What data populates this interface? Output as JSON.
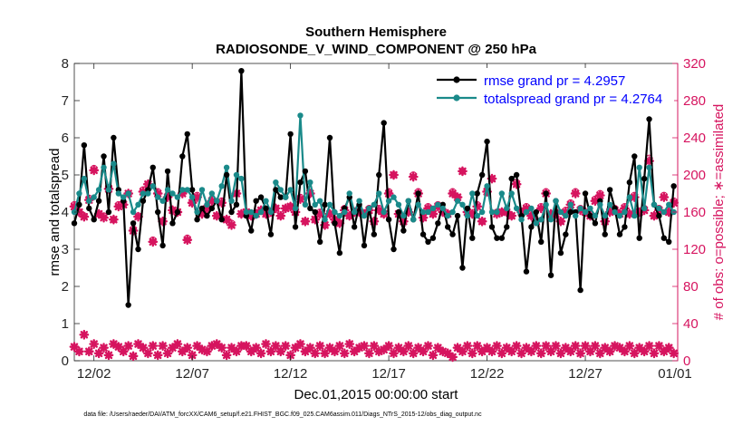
{
  "chart_data": {
    "type": "line",
    "title": "Southern Hemisphere",
    "subtitle": "RADIOSONDE_V_WIND_COMPONENT @ 250 hPa",
    "xlabel": "Dec.01,2015 00:00:00 start",
    "ylabel_left": "rmse and totalspread",
    "ylabel_right": "# of obs: o=possible; ∗=assimilated",
    "xlim": [
      0.5,
      31.2
    ],
    "ylim_left": [
      0,
      8
    ],
    "ylim_right": [
      0,
      320
    ],
    "x_ticks": [
      {
        "value": 1.5,
        "label": "12/02"
      },
      {
        "value": 6.5,
        "label": "12/07"
      },
      {
        "value": 11.5,
        "label": "12/12"
      },
      {
        "value": 16.5,
        "label": "12/17"
      },
      {
        "value": 21.5,
        "label": "12/22"
      },
      {
        "value": 26.5,
        "label": "12/27"
      },
      {
        "value": 31.5,
        "label": "01/01"
      }
    ],
    "y_ticks_left": [
      0,
      1,
      2,
      3,
      4,
      5,
      6,
      7,
      8
    ],
    "y_ticks_right": [
      0,
      40,
      80,
      120,
      160,
      200,
      240,
      280,
      320
    ],
    "colors": {
      "rmse": "#000000",
      "spread": "#1a8a8a",
      "obs": "#d6145f",
      "axis_right": "#d6145f",
      "legend_text": "#0000ff"
    },
    "legend": [
      {
        "key": "rmse",
        "label": "rmse grand pr = 4.2957"
      },
      {
        "key": "spread",
        "label": "totalspread grand pr = 4.2764"
      }
    ],
    "x_start": 0.5,
    "x_step": 0.25,
    "series": [
      {
        "name": "rmse",
        "axis": "left",
        "values": [
          3.7,
          4.2,
          5.8,
          4.1,
          3.8,
          4.3,
          5.5,
          4.0,
          6.0,
          4.6,
          4.3,
          1.5,
          3.7,
          3.0,
          4.3,
          4.6,
          5.2,
          4.0,
          3.1,
          5.1,
          3.7,
          4.0,
          5.5,
          6.1,
          4.6,
          3.8,
          4.1,
          3.9,
          4.1,
          4.3,
          3.8,
          5.0,
          4.0,
          4.2,
          7.8,
          3.9,
          3.5,
          4.3,
          4.4,
          4.1,
          3.4,
          4.6,
          4.4,
          4.4,
          6.1,
          3.6,
          4.8,
          5.1,
          4.1,
          4.0,
          3.2,
          4.2,
          6.0,
          3.7,
          2.9,
          4.1,
          4.4,
          3.6,
          4.2,
          3.1,
          4.1,
          3.4,
          5.0,
          6.4,
          3.8,
          3.0,
          4.0,
          3.5,
          4.3,
          3.8,
          4.5,
          3.4,
          3.2,
          3.3,
          3.7,
          4.2,
          3.6,
          3.4,
          3.9,
          2.5,
          4.1,
          3.3,
          4.5,
          5.0,
          5.9,
          3.6,
          3.3,
          3.3,
          3.6,
          4.9,
          5.0,
          3.9,
          2.4,
          3.6,
          4.0,
          3.2,
          4.5,
          2.3,
          4.3,
          2.9,
          3.4,
          4.0,
          4.0,
          1.9,
          4.5,
          3.9,
          3.7,
          4.3,
          3.4,
          4.6,
          4.1,
          3.4,
          3.6,
          4.8,
          5.5,
          3.3,
          4.9,
          6.5,
          4.2,
          3.9,
          3.3,
          3.2,
          4.7,
          4.3,
          4.0,
          3.9,
          4.5,
          3.9,
          4.4,
          3.2,
          4.6,
          2.5
        ]
      },
      {
        "name": "totalspread",
        "axis": "left",
        "values": [
          4.0,
          4.5,
          4.9,
          4.3,
          4.4,
          4.6,
          5.2,
          4.6,
          5.3,
          4.5,
          4.4,
          4.5,
          4.0,
          4.2,
          4.5,
          4.5,
          4.7,
          4.4,
          4.3,
          4.6,
          4.5,
          4.4,
          4.6,
          4.6,
          4.4,
          4.0,
          4.6,
          4.2,
          4.5,
          4.3,
          4.7,
          5.2,
          4.3,
          5.0,
          4.9,
          4.0,
          4.0,
          3.9,
          4.0,
          4.3,
          4.0,
          4.8,
          4.6,
          4.4,
          4.6,
          4.1,
          6.6,
          4.2,
          4.8,
          4.2,
          4.3,
          3.8,
          4.2,
          4.0,
          3.9,
          4.0,
          4.5,
          4.0,
          4.3,
          3.9,
          4.1,
          4.2,
          4.5,
          4.0,
          4.3,
          4.4,
          4.2,
          3.9,
          4.3,
          3.8,
          4.2,
          4.0,
          4.0,
          4.1,
          4.2,
          4.1,
          3.9,
          4.0,
          4.3,
          4.2,
          3.9,
          4.5,
          3.9,
          4.0,
          4.7,
          4.0,
          4.0,
          4.5,
          4.1,
          4.5,
          4.1,
          3.8,
          4.0,
          4.1,
          3.7,
          3.8,
          4.2,
          3.8,
          4.3,
          4.0,
          3.9,
          4.2,
          3.9,
          4.1,
          4.0,
          4.1,
          3.9,
          4.2,
          3.9,
          4.2,
          4.0,
          3.9,
          4.0,
          4.4,
          3.9,
          5.2,
          4.1,
          5.2,
          4.2,
          4.1,
          4.0,
          4.2,
          4.0,
          4.1,
          4.2,
          4.0,
          4.1,
          4.2,
          3.9,
          4.3,
          4.0,
          4.0
        ]
      },
      {
        "name": "obs_assimilated",
        "axis": "right",
        "marker": "*",
        "values": [
          166,
          160,
          155,
          173,
          205,
          158,
          154,
          185,
          152,
          166,
          168,
          180,
          140,
          155,
          182,
          190,
          128,
          180,
          150,
          176,
          162,
          160,
          180,
          130,
          170,
          176,
          158,
          164,
          172,
          156,
          170,
          152,
          146,
          180,
          158,
          160,
          156,
          158,
          162,
          158,
          160,
          164,
          156,
          164,
          166,
          160,
          174,
          150,
          180,
          152,
          158,
          146,
          158,
          152,
          148,
          162,
          156,
          160,
          160,
          158,
          162,
          150,
          162,
          158,
          180,
          200,
          158,
          150,
          160,
          198,
          180,
          154,
          164,
          158,
          166,
          160,
          158,
          180,
          176,
          204,
          160,
          158,
          166,
          150,
          182,
          196,
          158,
          160,
          160,
          156,
          190,
          160,
          164,
          156,
          150,
          164,
          180,
          158,
          158,
          150,
          160,
          168,
          180,
          162,
          160,
          156,
          172,
          178,
          150,
          160,
          162,
          158,
          164,
          158,
          176,
          160,
          162,
          215,
          156,
          162,
          176,
          160,
          170,
          164,
          206,
          156,
          190,
          160,
          166,
          160,
          162,
          156
        ]
      },
      {
        "name": "obs_possible",
        "axis": "right",
        "marker": "o",
        "values": [
          168,
          160,
          156,
          175,
          207,
          158,
          156,
          186,
          152,
          168,
          168,
          180,
          142,
          156,
          184,
          190,
          130,
          182,
          150,
          178,
          162,
          160,
          182,
          132,
          170,
          178,
          160,
          164,
          174,
          156,
          172,
          152,
          148,
          180,
          158,
          160,
          156,
          158,
          162,
          158,
          160,
          164,
          156,
          164,
          166,
          160,
          176,
          150,
          180,
          152,
          160,
          146,
          158,
          152,
          148,
          164,
          156,
          160,
          160,
          158,
          164,
          150,
          164,
          158,
          182,
          200,
          158,
          150,
          160,
          200,
          182,
          154,
          166,
          158,
          168,
          160,
          158,
          182,
          176,
          204,
          162,
          158,
          168,
          150,
          184,
          196,
          160,
          160,
          162,
          156,
          192,
          160,
          166,
          156,
          150,
          166,
          182,
          158,
          160,
          150,
          162,
          170,
          182,
          164,
          160,
          156,
          174,
          180,
          150,
          162,
          164,
          158,
          166,
          158,
          178,
          160,
          164,
          218,
          156,
          164,
          178,
          160,
          172,
          166,
          208,
          156,
          192,
          160,
          168,
          160,
          164,
          156
        ]
      },
      {
        "name": "obs_low",
        "axis": "right",
        "marker": "*",
        "values": [
          15,
          10,
          28,
          10,
          18,
          8,
          14,
          6,
          18,
          15,
          10,
          16,
          5,
          18,
          14,
          8,
          16,
          6,
          16,
          8,
          14,
          18,
          10,
          14,
          6,
          16,
          12,
          10,
          16,
          18,
          14,
          6,
          14,
          10,
          16,
          16,
          10,
          14,
          8,
          18,
          10,
          16,
          10,
          16,
          6,
          14,
          18,
          10,
          14,
          8,
          16,
          8,
          14,
          10,
          16,
          8,
          18,
          10,
          14,
          16,
          8,
          16,
          10,
          12,
          16,
          8,
          14,
          10,
          16,
          8,
          14,
          10,
          16,
          6,
          14,
          10,
          8,
          4,
          14,
          10,
          16,
          8,
          16,
          10,
          14,
          10,
          16,
          8,
          14,
          10,
          16,
          8,
          14,
          10,
          16,
          8,
          16,
          10,
          16,
          8,
          14,
          10,
          16,
          8,
          16,
          10,
          16,
          8,
          14,
          10,
          16,
          14,
          10,
          16,
          8,
          14,
          10,
          16,
          8,
          16,
          10,
          14,
          8,
          16,
          10,
          14,
          8,
          16,
          6,
          2,
          14,
          10
        ]
      }
    ]
  },
  "footer": "data file: /Users/raeder/DAI/ATM_forcXX/CAM6_setup/f.e21.FHIST_BGC.f09_025.CAM6assim.011/Diags_NTrS_2015-12/obs_diag_output.nc"
}
